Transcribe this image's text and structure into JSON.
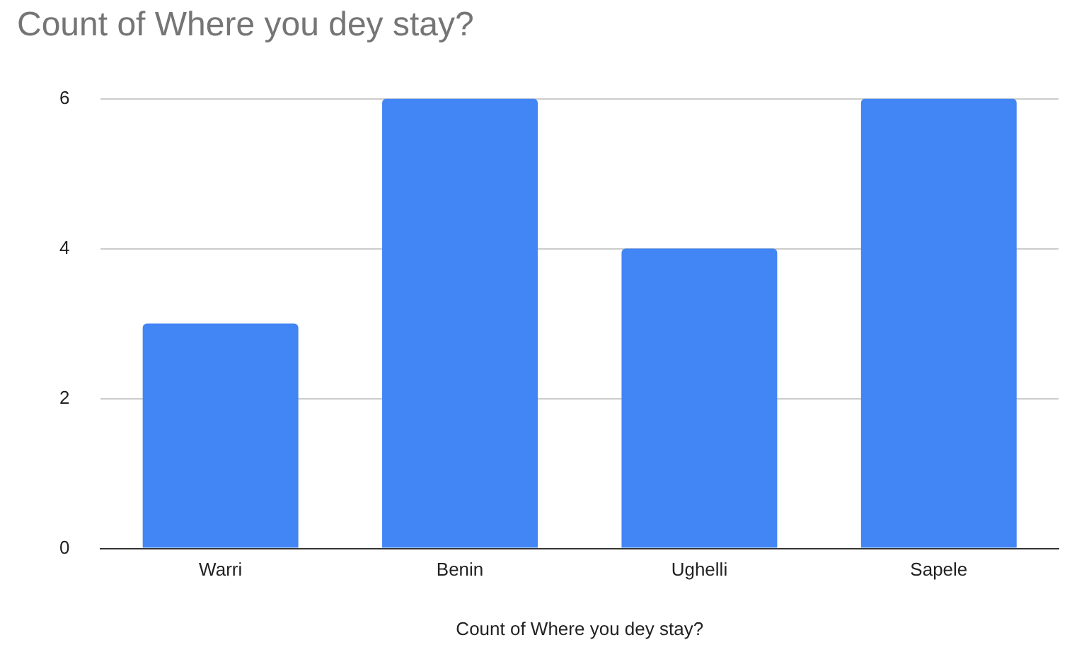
{
  "chart_data": {
    "type": "bar",
    "title": "Count of Where you dey stay?",
    "xlabel": "Count of Where you dey stay?",
    "categories": [
      "Warri",
      "Benin",
      "Ughelli",
      "Sapele"
    ],
    "values": [
      3,
      6,
      4,
      6
    ],
    "color": "#4285f4",
    "ylim": [
      0,
      6
    ],
    "yticks": [
      0,
      2,
      4,
      6
    ],
    "grid": "y"
  }
}
